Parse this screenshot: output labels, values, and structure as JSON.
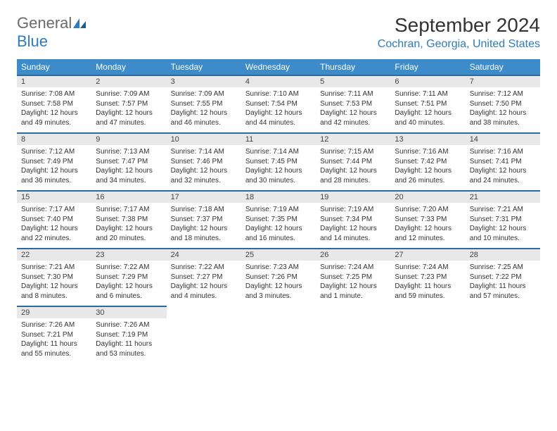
{
  "brand": {
    "general": "General",
    "blue": "Blue"
  },
  "title": "September 2024",
  "location": "Cochran, Georgia, United States",
  "colors": {
    "header_bg": "#3d8bc9",
    "daynum_bg": "#e8e8e8",
    "daynum_border": "#2d6a9f",
    "brand_gray": "#6b6b6b",
    "brand_blue": "#2d7bbf"
  },
  "weekdays": [
    "Sunday",
    "Monday",
    "Tuesday",
    "Wednesday",
    "Thursday",
    "Friday",
    "Saturday"
  ],
  "days": [
    {
      "n": "1",
      "sr": "Sunrise: 7:08 AM",
      "ss": "Sunset: 7:58 PM",
      "d1": "Daylight: 12 hours",
      "d2": "and 49 minutes."
    },
    {
      "n": "2",
      "sr": "Sunrise: 7:09 AM",
      "ss": "Sunset: 7:57 PM",
      "d1": "Daylight: 12 hours",
      "d2": "and 47 minutes."
    },
    {
      "n": "3",
      "sr": "Sunrise: 7:09 AM",
      "ss": "Sunset: 7:55 PM",
      "d1": "Daylight: 12 hours",
      "d2": "and 46 minutes."
    },
    {
      "n": "4",
      "sr": "Sunrise: 7:10 AM",
      "ss": "Sunset: 7:54 PM",
      "d1": "Daylight: 12 hours",
      "d2": "and 44 minutes."
    },
    {
      "n": "5",
      "sr": "Sunrise: 7:11 AM",
      "ss": "Sunset: 7:53 PM",
      "d1": "Daylight: 12 hours",
      "d2": "and 42 minutes."
    },
    {
      "n": "6",
      "sr": "Sunrise: 7:11 AM",
      "ss": "Sunset: 7:51 PM",
      "d1": "Daylight: 12 hours",
      "d2": "and 40 minutes."
    },
    {
      "n": "7",
      "sr": "Sunrise: 7:12 AM",
      "ss": "Sunset: 7:50 PM",
      "d1": "Daylight: 12 hours",
      "d2": "and 38 minutes."
    },
    {
      "n": "8",
      "sr": "Sunrise: 7:12 AM",
      "ss": "Sunset: 7:49 PM",
      "d1": "Daylight: 12 hours",
      "d2": "and 36 minutes."
    },
    {
      "n": "9",
      "sr": "Sunrise: 7:13 AM",
      "ss": "Sunset: 7:47 PM",
      "d1": "Daylight: 12 hours",
      "d2": "and 34 minutes."
    },
    {
      "n": "10",
      "sr": "Sunrise: 7:14 AM",
      "ss": "Sunset: 7:46 PM",
      "d1": "Daylight: 12 hours",
      "d2": "and 32 minutes."
    },
    {
      "n": "11",
      "sr": "Sunrise: 7:14 AM",
      "ss": "Sunset: 7:45 PM",
      "d1": "Daylight: 12 hours",
      "d2": "and 30 minutes."
    },
    {
      "n": "12",
      "sr": "Sunrise: 7:15 AM",
      "ss": "Sunset: 7:44 PM",
      "d1": "Daylight: 12 hours",
      "d2": "and 28 minutes."
    },
    {
      "n": "13",
      "sr": "Sunrise: 7:16 AM",
      "ss": "Sunset: 7:42 PM",
      "d1": "Daylight: 12 hours",
      "d2": "and 26 minutes."
    },
    {
      "n": "14",
      "sr": "Sunrise: 7:16 AM",
      "ss": "Sunset: 7:41 PM",
      "d1": "Daylight: 12 hours",
      "d2": "and 24 minutes."
    },
    {
      "n": "15",
      "sr": "Sunrise: 7:17 AM",
      "ss": "Sunset: 7:40 PM",
      "d1": "Daylight: 12 hours",
      "d2": "and 22 minutes."
    },
    {
      "n": "16",
      "sr": "Sunrise: 7:17 AM",
      "ss": "Sunset: 7:38 PM",
      "d1": "Daylight: 12 hours",
      "d2": "and 20 minutes."
    },
    {
      "n": "17",
      "sr": "Sunrise: 7:18 AM",
      "ss": "Sunset: 7:37 PM",
      "d1": "Daylight: 12 hours",
      "d2": "and 18 minutes."
    },
    {
      "n": "18",
      "sr": "Sunrise: 7:19 AM",
      "ss": "Sunset: 7:35 PM",
      "d1": "Daylight: 12 hours",
      "d2": "and 16 minutes."
    },
    {
      "n": "19",
      "sr": "Sunrise: 7:19 AM",
      "ss": "Sunset: 7:34 PM",
      "d1": "Daylight: 12 hours",
      "d2": "and 14 minutes."
    },
    {
      "n": "20",
      "sr": "Sunrise: 7:20 AM",
      "ss": "Sunset: 7:33 PM",
      "d1": "Daylight: 12 hours",
      "d2": "and 12 minutes."
    },
    {
      "n": "21",
      "sr": "Sunrise: 7:21 AM",
      "ss": "Sunset: 7:31 PM",
      "d1": "Daylight: 12 hours",
      "d2": "and 10 minutes."
    },
    {
      "n": "22",
      "sr": "Sunrise: 7:21 AM",
      "ss": "Sunset: 7:30 PM",
      "d1": "Daylight: 12 hours",
      "d2": "and 8 minutes."
    },
    {
      "n": "23",
      "sr": "Sunrise: 7:22 AM",
      "ss": "Sunset: 7:29 PM",
      "d1": "Daylight: 12 hours",
      "d2": "and 6 minutes."
    },
    {
      "n": "24",
      "sr": "Sunrise: 7:22 AM",
      "ss": "Sunset: 7:27 PM",
      "d1": "Daylight: 12 hours",
      "d2": "and 4 minutes."
    },
    {
      "n": "25",
      "sr": "Sunrise: 7:23 AM",
      "ss": "Sunset: 7:26 PM",
      "d1": "Daylight: 12 hours",
      "d2": "and 3 minutes."
    },
    {
      "n": "26",
      "sr": "Sunrise: 7:24 AM",
      "ss": "Sunset: 7:25 PM",
      "d1": "Daylight: 12 hours",
      "d2": "and 1 minute."
    },
    {
      "n": "27",
      "sr": "Sunrise: 7:24 AM",
      "ss": "Sunset: 7:23 PM",
      "d1": "Daylight: 11 hours",
      "d2": "and 59 minutes."
    },
    {
      "n": "28",
      "sr": "Sunrise: 7:25 AM",
      "ss": "Sunset: 7:22 PM",
      "d1": "Daylight: 11 hours",
      "d2": "and 57 minutes."
    },
    {
      "n": "29",
      "sr": "Sunrise: 7:26 AM",
      "ss": "Sunset: 7:21 PM",
      "d1": "Daylight: 11 hours",
      "d2": "and 55 minutes."
    },
    {
      "n": "30",
      "sr": "Sunrise: 7:26 AM",
      "ss": "Sunset: 7:19 PM",
      "d1": "Daylight: 11 hours",
      "d2": "and 53 minutes."
    }
  ]
}
